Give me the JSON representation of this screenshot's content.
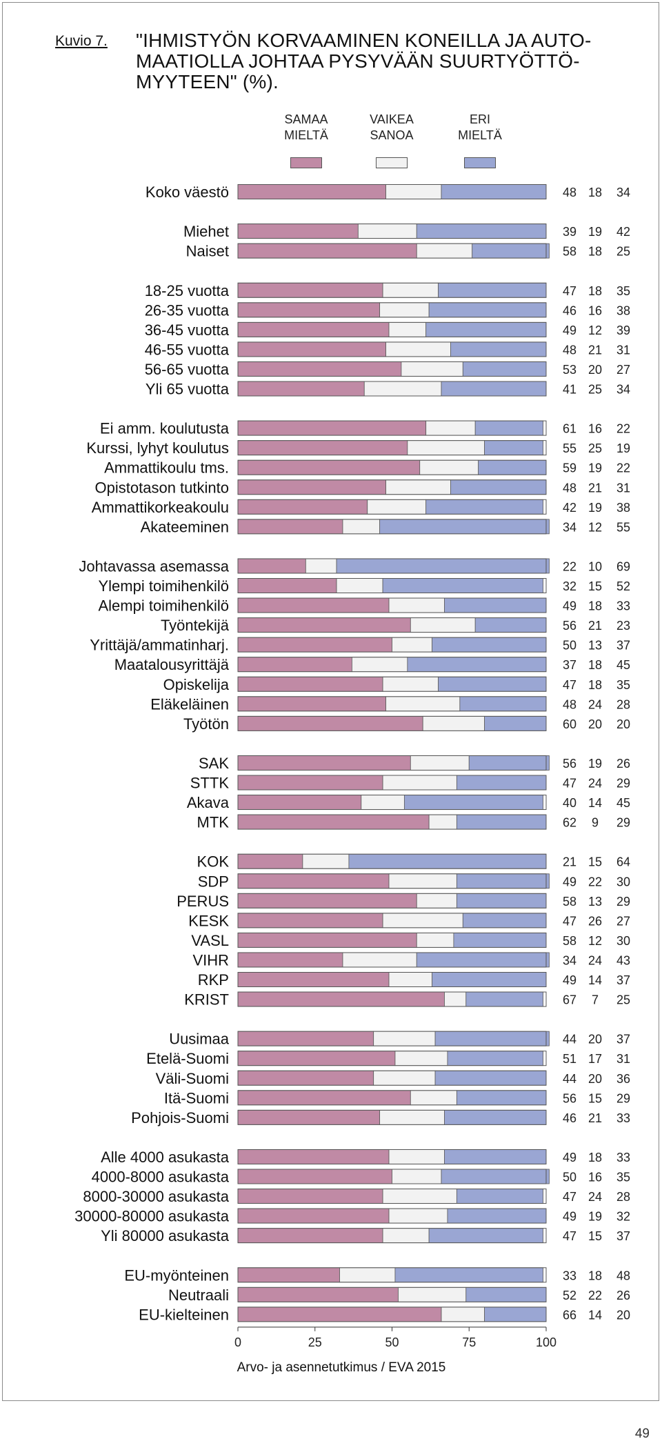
{
  "figure_label": "Kuvio 7.",
  "title": "\"IHMISTYÖN KORVAAMINEN KONEILLA JA AUTO-MAATIOLLA JOHTAA PYSYVÄÄN SUURTYÖTTÖ-MYYTEEN\" (%).",
  "source": "Arvo- ja asennetutkimus / EVA 2015",
  "page_number": "49",
  "colors": {
    "samaa": "#c08aa5",
    "vaikea": "#f2f2f2",
    "eri": "#9aa6d3"
  },
  "legend": [
    {
      "line1": "SAMAA",
      "line2": "MIELTÄ",
      "color": "#c08aa5"
    },
    {
      "line1": "VAIKEA",
      "line2": "SANOA",
      "color": "#f2f2f2"
    },
    {
      "line1": "ERI",
      "line2": "MIELTÄ",
      "color": "#9aa6d3"
    }
  ],
  "chart_data": {
    "type": "bar",
    "orientation": "horizontal",
    "stacked": true,
    "xlim": [
      0,
      100
    ],
    "xticks": [
      0,
      25,
      50,
      75,
      100
    ],
    "series": [
      {
        "name": "SAMAA MIELTÄ"
      },
      {
        "name": "VAIKEA SANOA"
      },
      {
        "name": "ERI MIELTÄ"
      }
    ],
    "groups": [
      {
        "rows": [
          {
            "label": "Koko väestö",
            "values": [
              48,
              18,
              34
            ]
          }
        ]
      },
      {
        "rows": [
          {
            "label": "Miehet",
            "values": [
              39,
              19,
              42
            ]
          },
          {
            "label": "Naiset",
            "values": [
              58,
              18,
              25
            ]
          }
        ]
      },
      {
        "rows": [
          {
            "label": "18-25 vuotta",
            "values": [
              47,
              18,
              35
            ]
          },
          {
            "label": "26-35 vuotta",
            "values": [
              46,
              16,
              38
            ]
          },
          {
            "label": "36-45 vuotta",
            "values": [
              49,
              12,
              39
            ]
          },
          {
            "label": "46-55 vuotta",
            "values": [
              48,
              21,
              31
            ]
          },
          {
            "label": "56-65 vuotta",
            "values": [
              53,
              20,
              27
            ]
          },
          {
            "label": "Yli 65 vuotta",
            "values": [
              41,
              25,
              34
            ]
          }
        ]
      },
      {
        "rows": [
          {
            "label": "Ei amm. koulutusta",
            "values": [
              61,
              16,
              22
            ]
          },
          {
            "label": "Kurssi, lyhyt koulutus",
            "values": [
              55,
              25,
              19
            ]
          },
          {
            "label": "Ammattikoulu tms.",
            "values": [
              59,
              19,
              22
            ]
          },
          {
            "label": "Opistotason tutkinto",
            "values": [
              48,
              21,
              31
            ]
          },
          {
            "label": "Ammattikorkeakoulu",
            "values": [
              42,
              19,
              38
            ]
          },
          {
            "label": "Akateeminen",
            "values": [
              34,
              12,
              55
            ]
          }
        ]
      },
      {
        "rows": [
          {
            "label": "Johtavassa asemassa",
            "values": [
              22,
              10,
              69
            ]
          },
          {
            "label": "Ylempi toimihenkilö",
            "values": [
              32,
              15,
              52
            ]
          },
          {
            "label": "Alempi toimihenkilö",
            "values": [
              49,
              18,
              33
            ]
          },
          {
            "label": "Työntekijä",
            "values": [
              56,
              21,
              23
            ]
          },
          {
            "label": "Yrittäjä/ammatinharj.",
            "values": [
              50,
              13,
              37
            ]
          },
          {
            "label": "Maatalousyrittäjä",
            "values": [
              37,
              18,
              45
            ]
          },
          {
            "label": "Opiskelija",
            "values": [
              47,
              18,
              35
            ]
          },
          {
            "label": "Eläkeläinen",
            "values": [
              48,
              24,
              28
            ]
          },
          {
            "label": "Työtön",
            "values": [
              60,
              20,
              20
            ]
          }
        ]
      },
      {
        "rows": [
          {
            "label": "SAK",
            "values": [
              56,
              19,
              26
            ]
          },
          {
            "label": "STTK",
            "values": [
              47,
              24,
              29
            ]
          },
          {
            "label": "Akava",
            "values": [
              40,
              14,
              45
            ]
          },
          {
            "label": "MTK",
            "values": [
              62,
              9,
              29
            ]
          }
        ]
      },
      {
        "rows": [
          {
            "label": "KOK",
            "values": [
              21,
              15,
              64
            ]
          },
          {
            "label": "SDP",
            "values": [
              49,
              22,
              30
            ]
          },
          {
            "label": "PERUS",
            "values": [
              58,
              13,
              29
            ]
          },
          {
            "label": "KESK",
            "values": [
              47,
              26,
              27
            ]
          },
          {
            "label": "VASL",
            "values": [
              58,
              12,
              30
            ]
          },
          {
            "label": "VIHR",
            "values": [
              34,
              24,
              43
            ]
          },
          {
            "label": "RKP",
            "values": [
              49,
              14,
              37
            ]
          },
          {
            "label": "KRIST",
            "values": [
              67,
              7,
              25
            ]
          }
        ]
      },
      {
        "rows": [
          {
            "label": "Uusimaa",
            "values": [
              44,
              20,
              37
            ]
          },
          {
            "label": "Etelä-Suomi",
            "values": [
              51,
              17,
              31
            ]
          },
          {
            "label": "Väli-Suomi",
            "values": [
              44,
              20,
              36
            ]
          },
          {
            "label": "Itä-Suomi",
            "values": [
              56,
              15,
              29
            ]
          },
          {
            "label": "Pohjois-Suomi",
            "values": [
              46,
              21,
              33
            ]
          }
        ]
      },
      {
        "rows": [
          {
            "label": "Alle 4000 asukasta",
            "values": [
              49,
              18,
              33
            ]
          },
          {
            "label": "4000-8000 asukasta",
            "values": [
              50,
              16,
              35
            ]
          },
          {
            "label": "8000-30000 asukasta",
            "values": [
              47,
              24,
              28
            ]
          },
          {
            "label": "30000-80000 asukasta",
            "values": [
              49,
              19,
              32
            ]
          },
          {
            "label": "Yli 80000 asukasta",
            "values": [
              47,
              15,
              37
            ]
          }
        ]
      },
      {
        "rows": [
          {
            "label": "EU-myönteinen",
            "values": [
              33,
              18,
              48
            ]
          },
          {
            "label": "Neutraali",
            "values": [
              52,
              22,
              26
            ]
          },
          {
            "label": "EU-kielteinen",
            "values": [
              66,
              14,
              20
            ]
          }
        ]
      }
    ]
  }
}
